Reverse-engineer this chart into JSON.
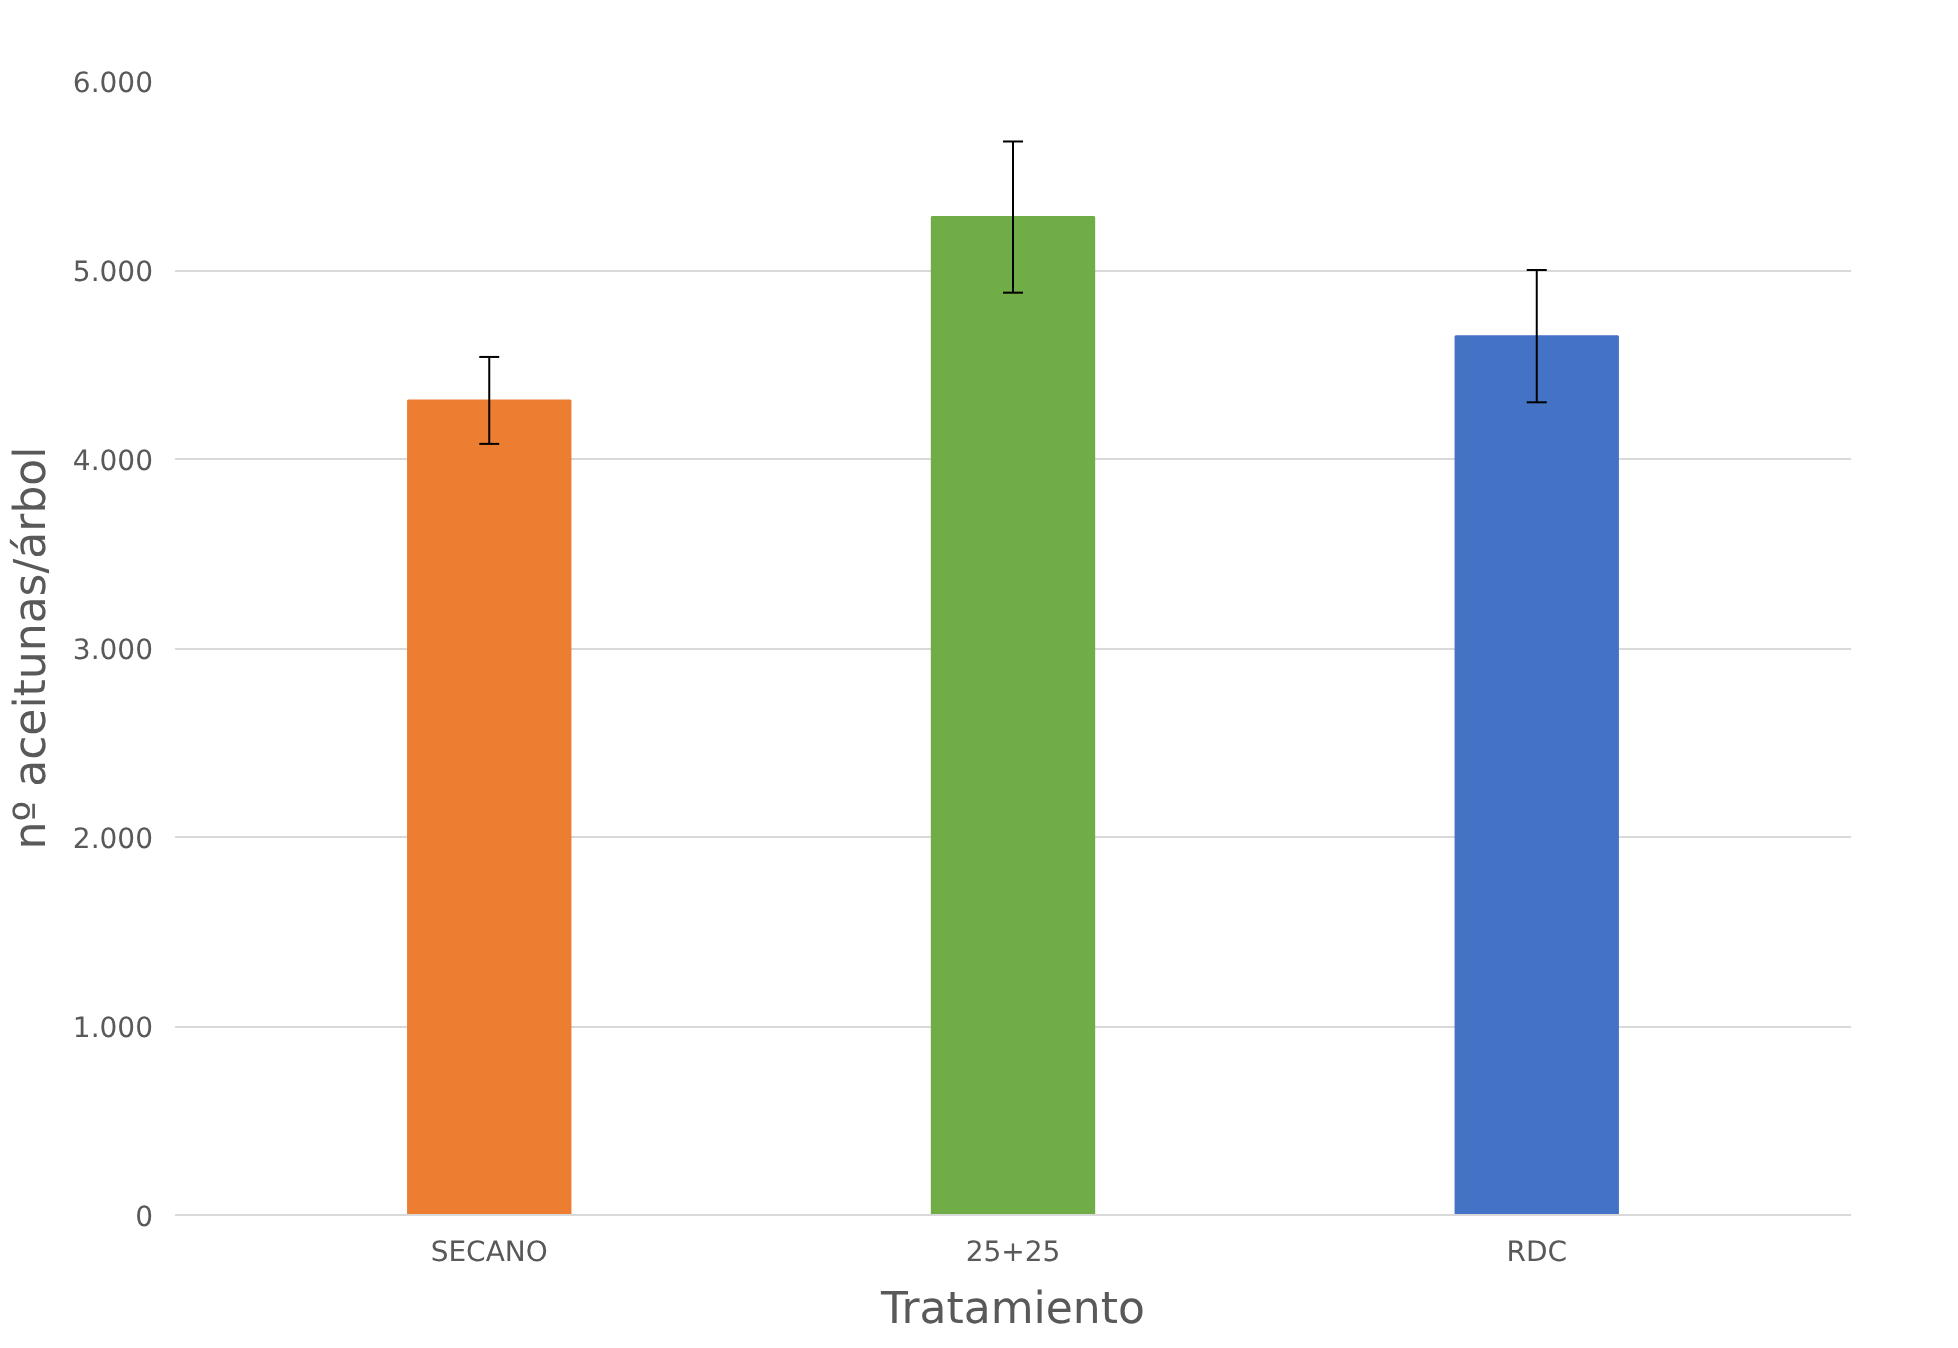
{
  "chart_data": {
    "type": "bar",
    "xlabel": "Tratamiento",
    "ylabel": "nº aceitunas/árbol",
    "categories": [
      "SECANO",
      "25+25",
      "RDC"
    ],
    "values": [
      4310,
      5280,
      4650
    ],
    "errors": [
      230,
      400,
      350
    ],
    "colors": [
      "#ed7d31",
      "#70ad47",
      "#4472c4"
    ],
    "ylim": [
      0,
      6000
    ],
    "yticks": [
      {
        "value": 0,
        "label": "0"
      },
      {
        "value": 1000,
        "label": "1.000"
      },
      {
        "value": 2000,
        "label": "2.000"
      },
      {
        "value": 3000,
        "label": "3.000"
      },
      {
        "value": 4000,
        "label": "4.000"
      },
      {
        "value": 5000,
        "label": "5.000"
      },
      {
        "value": 6000,
        "label": "6.000"
      }
    ],
    "grid": "y"
  }
}
